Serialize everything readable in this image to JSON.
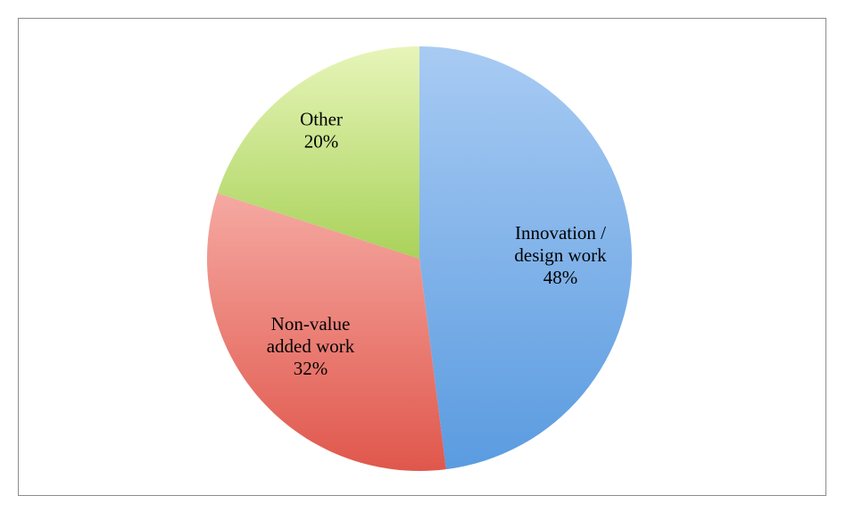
{
  "chart_data": {
    "type": "pie",
    "title": "",
    "start_angle_deg": 0,
    "direction": "clockwise",
    "slices": [
      {
        "name": "Innovation / design work",
        "label_lines": [
          "Innovation /",
          "design work",
          "48%"
        ],
        "value": 48,
        "color_light": "#a8cbf3",
        "color_dark": "#5a9be0"
      },
      {
        "name": "Non-value added work",
        "label_lines": [
          "Non-value",
          "added work",
          "32%"
        ],
        "value": 32,
        "color_light": "#f5a9a2",
        "color_dark": "#e0574c"
      },
      {
        "name": "Other",
        "label_lines": [
          "Other",
          "20%"
        ],
        "value": 20,
        "color_light": "#e7f5b9",
        "color_dark": "#a9d25a"
      }
    ],
    "legend": "none"
  }
}
